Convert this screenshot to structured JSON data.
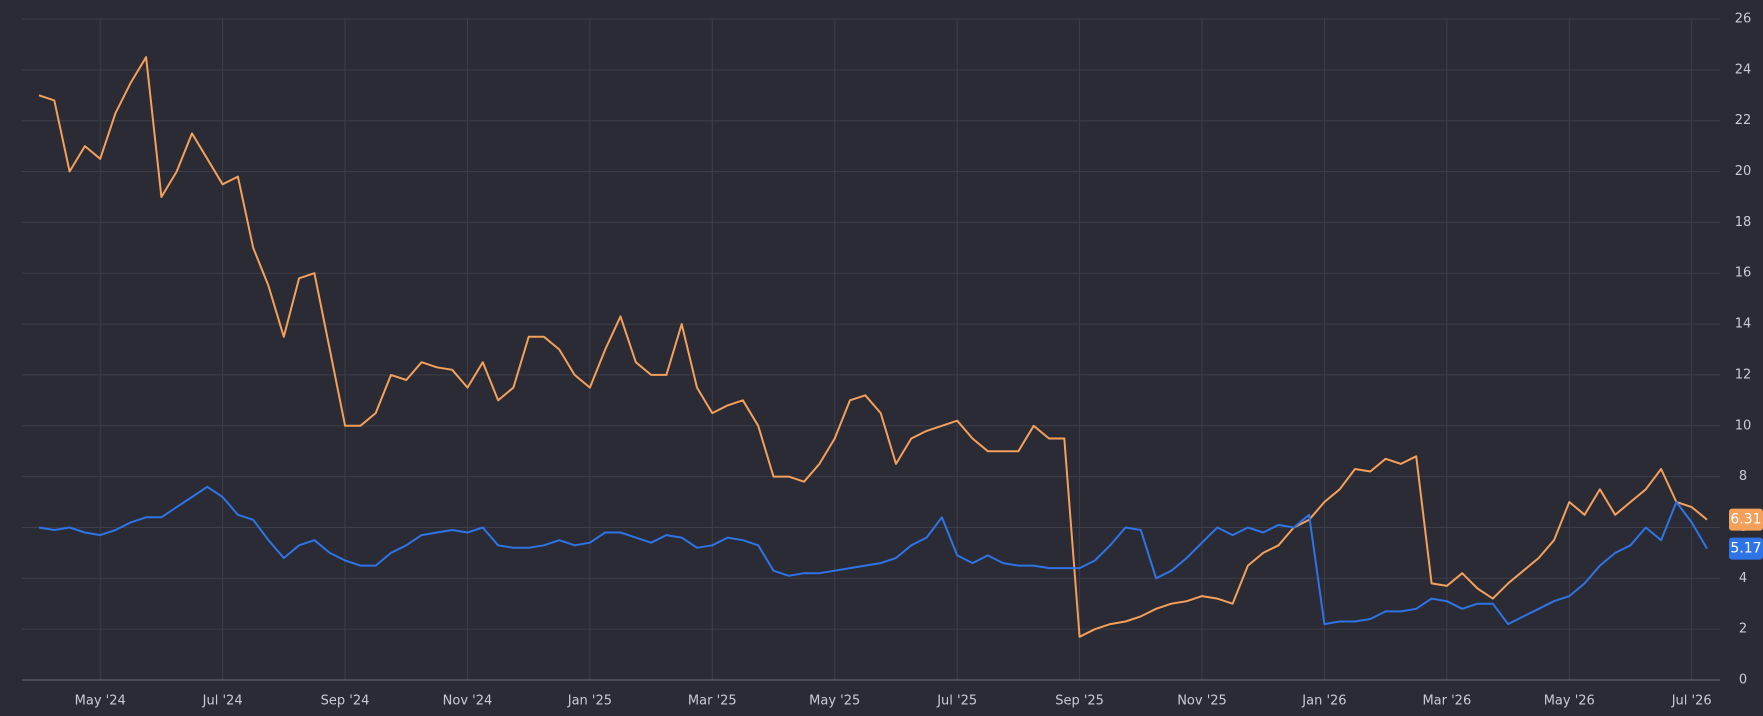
{
  "chart_data": {
    "type": "line",
    "categories": [
      null,
      null,
      null,
      null,
      "May '24",
      null,
      null,
      null,
      null,
      null,
      null,
      null,
      "Jul '24",
      null,
      null,
      null,
      null,
      null,
      null,
      null,
      "Sep '24",
      null,
      null,
      null,
      null,
      null,
      null,
      null,
      "Nov '24",
      null,
      null,
      null,
      null,
      null,
      null,
      null,
      "Jan '25",
      null,
      null,
      null,
      null,
      null,
      null,
      null,
      "Mar '25",
      null,
      null,
      null,
      null,
      null,
      null,
      null,
      "May '25",
      null,
      null,
      null,
      null,
      null,
      null,
      null,
      "Jul '25",
      null,
      null,
      null,
      null,
      null,
      null,
      null,
      "Sep '25",
      null,
      null,
      null,
      null,
      null,
      null,
      null,
      "Nov '25",
      null,
      null,
      null,
      null,
      null,
      null,
      null,
      "Jan '26",
      null,
      null,
      null,
      null,
      null,
      null,
      null,
      "Mar '26",
      null,
      null,
      null,
      null,
      null,
      null,
      null,
      "May '26",
      null,
      null,
      null,
      null,
      null,
      null,
      null,
      "Jul '26",
      null
    ],
    "series": [
      {
        "color": "#f4a05a",
        "values": [
          23,
          22.8,
          20,
          21,
          20.5,
          22.3,
          23.5,
          24.5,
          19,
          20,
          21.5,
          20.5,
          19.5,
          19.8,
          17,
          15.5,
          13.5,
          15.8,
          16,
          13,
          10,
          10,
          10.5,
          12,
          11.8,
          12.5,
          12.3,
          12.2,
          11.5,
          12.5,
          11,
          11.5,
          13.5,
          13.5,
          13,
          12,
          11.5,
          13,
          14.3,
          12.5,
          12,
          12,
          14,
          11.5,
          10.5,
          10.8,
          11,
          10,
          8,
          8,
          7.8,
          8.5,
          9.5,
          11,
          11.2,
          10.5,
          8.5,
          9.5,
          9.8,
          10,
          10.2,
          9.5,
          9,
          9,
          9,
          10,
          9.5,
          9.5,
          1.7,
          2,
          2.2,
          2.3,
          2.5,
          2.8,
          3,
          3.1,
          3.3,
          3.2,
          3,
          4.5,
          5,
          5.3,
          6,
          6.3,
          7,
          7.5,
          8.3,
          8.2,
          8.7,
          8.5,
          8.8,
          3.8,
          3.7,
          4.2,
          3.6,
          3.2,
          3.8,
          4.3,
          4.8,
          5.5,
          7,
          6.5,
          7.5,
          6.5,
          7,
          7.5,
          8.3,
          7,
          6.8,
          6.31
        ]
      },
      {
        "color": "#2f74e6",
        "values": [
          6,
          5.9,
          6,
          5.8,
          5.7,
          5.9,
          6.2,
          6.4,
          6.4,
          6.8,
          7.2,
          7.6,
          7.2,
          6.5,
          6.3,
          5.5,
          4.8,
          5.3,
          5.5,
          5,
          4.7,
          4.5,
          4.5,
          5,
          5.3,
          5.7,
          5.8,
          5.9,
          5.8,
          6,
          5.3,
          5.2,
          5.2,
          5.3,
          5.5,
          5.3,
          5.4,
          5.8,
          5.8,
          5.6,
          5.4,
          5.7,
          5.6,
          5.2,
          5.3,
          5.6,
          5.5,
          5.3,
          4.3,
          4.1,
          4.2,
          4.2,
          4.3,
          4.4,
          4.5,
          4.6,
          4.8,
          5.3,
          5.6,
          6.4,
          4.9,
          4.6,
          4.9,
          4.6,
          4.5,
          4.5,
          4.4,
          4.4,
          4.4,
          4.7,
          5.3,
          6,
          5.9,
          4,
          4.3,
          4.8,
          5.4,
          6,
          5.7,
          6,
          5.8,
          6.1,
          6,
          6.5,
          2.2,
          2.3,
          2.3,
          2.4,
          2.7,
          2.7,
          2.8,
          3.2,
          3.1,
          2.8,
          3,
          3,
          2.2,
          2.5,
          2.8,
          3.1,
          3.3,
          3.8,
          4.5,
          5,
          5.3,
          6,
          5.5,
          7,
          6.2,
          5.17
        ]
      }
    ],
    "ylim": [
      0,
      26
    ],
    "yticks": [
      0,
      2,
      4,
      6,
      8,
      10,
      12,
      14,
      16,
      18,
      20,
      22,
      24,
      26
    ],
    "grid": true
  }
}
